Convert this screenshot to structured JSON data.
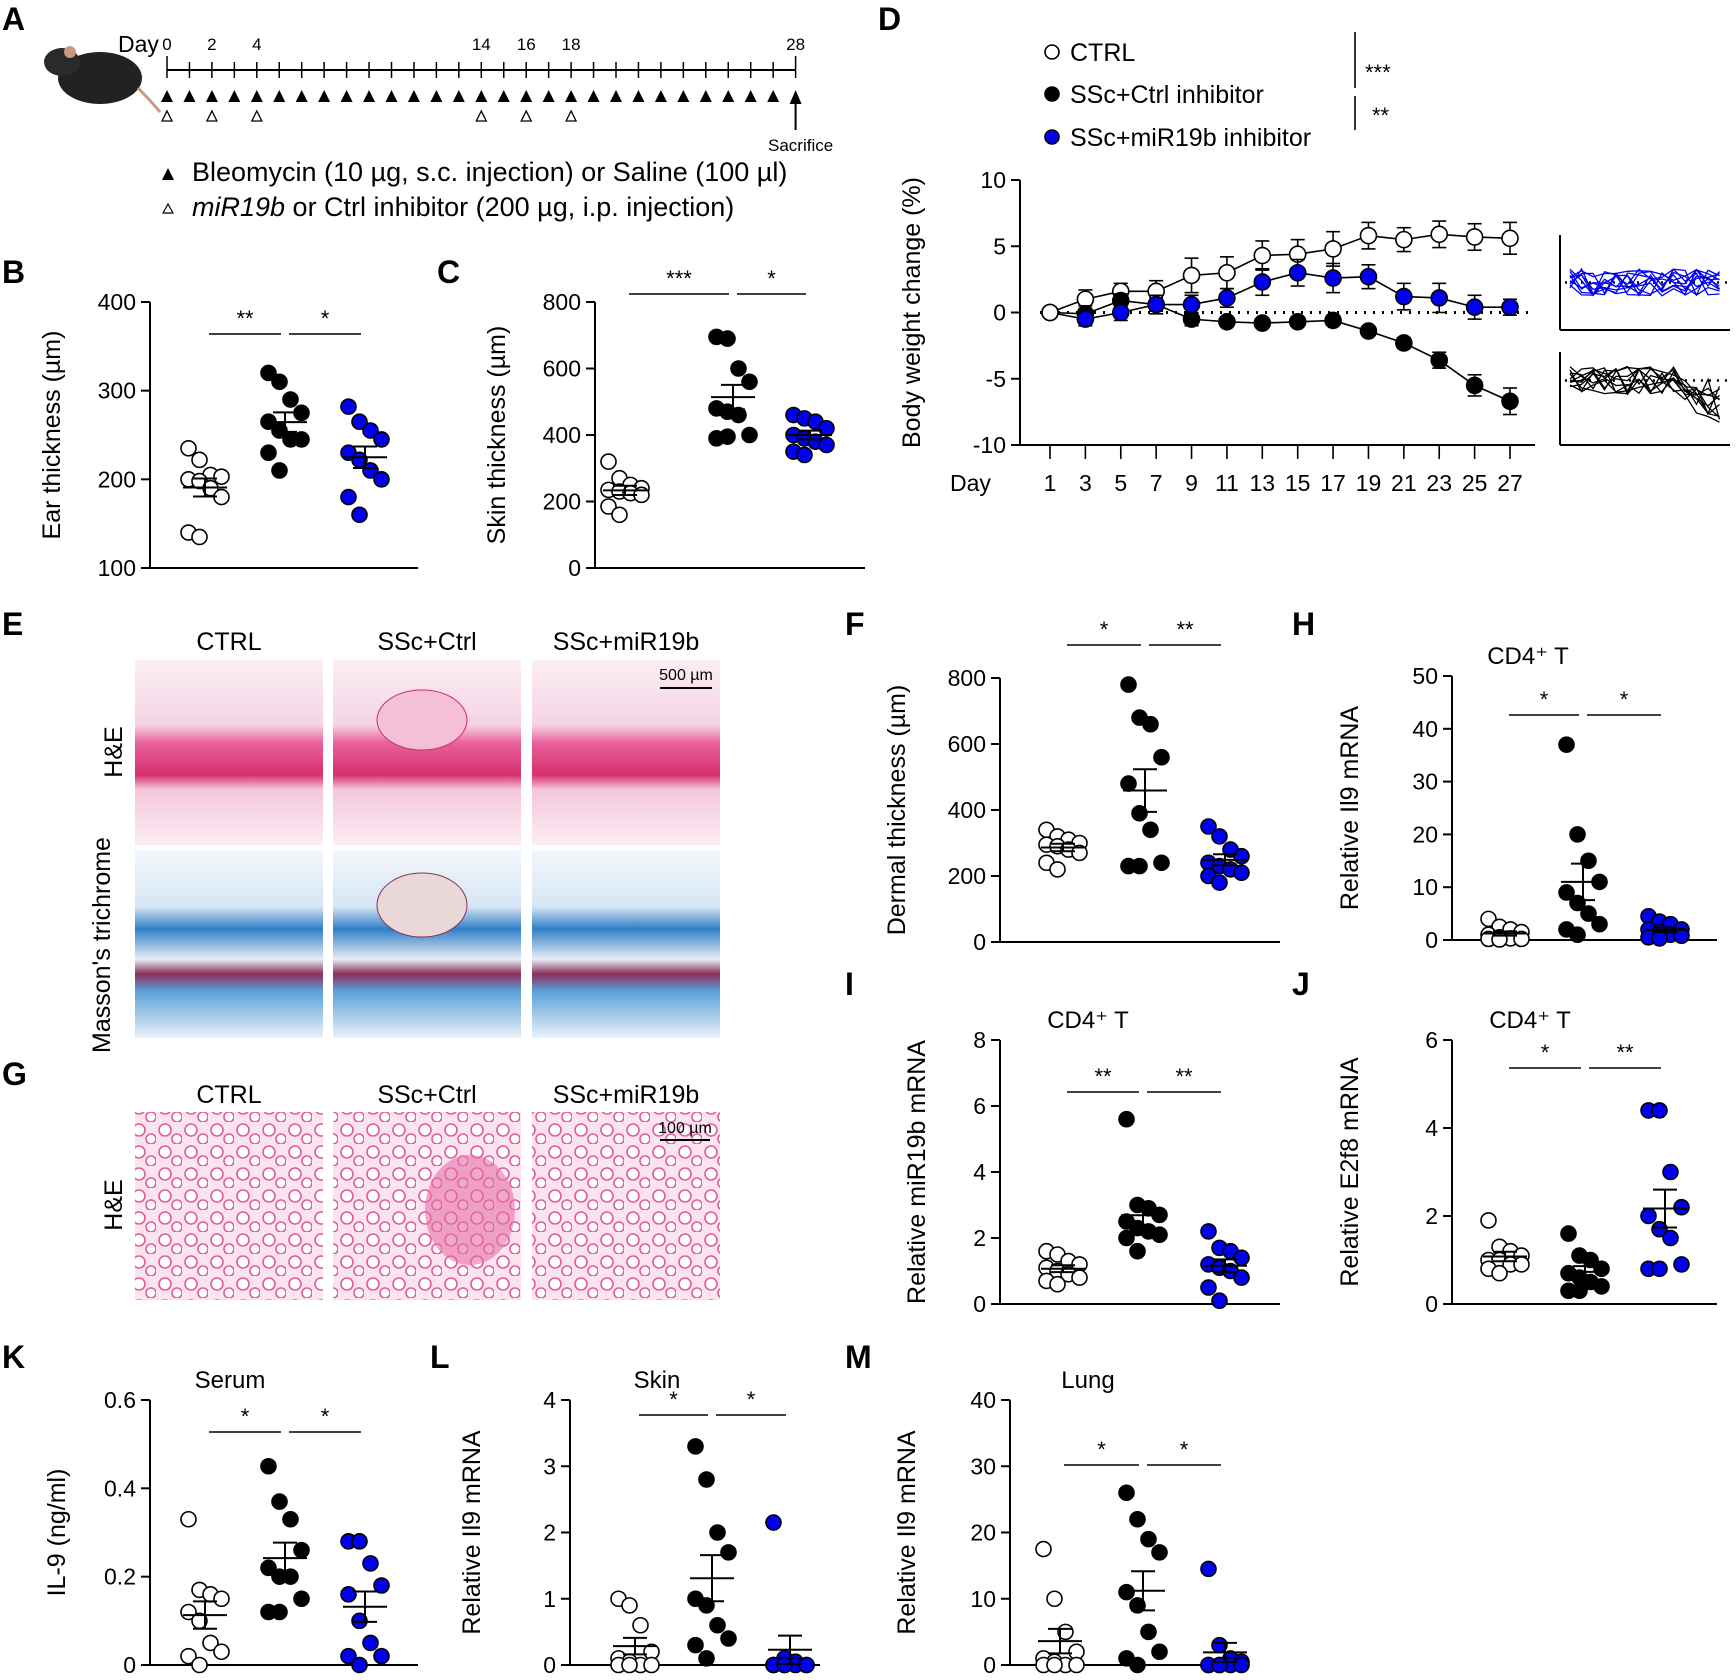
{
  "colors": {
    "ctrl_fill": "#ffffff",
    "ssc_fill": "#000000",
    "mir_fill": "#0000ee",
    "he_pink": "#e8609a",
    "trichrome_blue": "#2f7fc8"
  },
  "panel_a": {
    "letter": "A",
    "day_label": "Day",
    "day_ticks": [
      "0",
      "2",
      "4",
      "14",
      "16",
      "18",
      "28"
    ],
    "sacrifice": "Sacrifice",
    "legend_bleo": "Bleomycin (10 µg, s.c. injection) or Saline (100 µl)",
    "legend_inh_italic": "miR19b",
    "legend_inh_rest": " or Ctrl inhibitor (200 µg, i.p. injection)",
    "bleomycin_days": [
      0,
      1,
      2,
      3,
      4,
      5,
      6,
      7,
      8,
      9,
      10,
      11,
      12,
      13,
      14,
      15,
      16,
      17,
      18,
      19,
      20,
      21,
      22,
      23,
      24,
      25,
      26,
      27
    ],
    "inhibitor_days": [
      0,
      2,
      4,
      14,
      16,
      18
    ]
  },
  "panel_e": {
    "letter": "E",
    "cols": [
      "CTRL",
      "SSc+Ctrl",
      "SSc+miR19b"
    ],
    "rows": [
      "H&E",
      "Masson's trichrome"
    ],
    "scale": "500 µm"
  },
  "panel_g": {
    "letter": "G",
    "cols": [
      "CTRL",
      "SSc+Ctrl",
      "SSc+miR19b"
    ],
    "row": "H&E",
    "scale": "100 µm"
  },
  "chart_data": [
    {
      "id": "B",
      "type": "scatter",
      "ylabel": "Ear thickness (µm)",
      "title": "",
      "ylim": [
        100,
        400
      ],
      "yticks": [
        100,
        200,
        300,
        400
      ],
      "groups": [
        {
          "name": "CTRL",
          "values": [
            235,
            222,
            205,
            203,
            200,
            198,
            190,
            180,
            140,
            135
          ]
        },
        {
          "name": "SSc+Ctrl inhibitor",
          "values": [
            320,
            310,
            290,
            275,
            265,
            255,
            245,
            245,
            230,
            210
          ]
        },
        {
          "name": "SSc+miR19b inhibitor",
          "values": [
            282,
            265,
            255,
            245,
            230,
            222,
            210,
            200,
            180,
            160
          ]
        }
      ],
      "sig": [
        {
          "from": 0,
          "to": 1,
          "label": "**"
        },
        {
          "from": 1,
          "to": 2,
          "label": "*"
        }
      ]
    },
    {
      "id": "C",
      "type": "scatter",
      "ylabel": "Skin thickness (µm)",
      "title": "",
      "ylim": [
        0,
        800
      ],
      "yticks": [
        0,
        200,
        400,
        600,
        800
      ],
      "groups": [
        {
          "name": "CTRL",
          "values": [
            320,
            270,
            250,
            240,
            235,
            230,
            225,
            220,
            185,
            160
          ]
        },
        {
          "name": "SSc+Ctrl inhibitor",
          "values": [
            695,
            690,
            600,
            560,
            480,
            470,
            460,
            400,
            390,
            395
          ]
        },
        {
          "name": "SSc+miR19b inhibitor",
          "values": [
            460,
            450,
            440,
            420,
            400,
            390,
            380,
            370,
            350,
            340
          ]
        }
      ],
      "sig": [
        {
          "from": 0,
          "to": 1,
          "label": "***"
        },
        {
          "from": 1,
          "to": 2,
          "label": "*"
        }
      ]
    },
    {
      "id": "D",
      "type": "line",
      "ylabel": "Body weight change (%)",
      "xlabel": "Day",
      "ylim": [
        -10,
        10
      ],
      "yticks": [
        -10,
        -5,
        0,
        5,
        10
      ],
      "x": [
        1,
        3,
        5,
        7,
        9,
        11,
        13,
        15,
        17,
        19,
        21,
        23,
        25,
        27
      ],
      "legend": [
        "CTRL",
        "SSc+Ctrl inhibitor",
        "SSc+miR19b inhibitor"
      ],
      "legend_sig": [
        "***",
        "**"
      ],
      "series": [
        {
          "name": "CTRL",
          "values": [
            0,
            1,
            1.6,
            1.6,
            2.8,
            3,
            4.3,
            4.4,
            4.8,
            5.8,
            5.5,
            5.9,
            5.7,
            5.6
          ],
          "err": [
            0,
            0.7,
            0.6,
            0.8,
            1.3,
            1.2,
            1.1,
            1.1,
            1.3,
            1,
            0.9,
            1,
            1,
            1.2
          ]
        },
        {
          "name": "SSc+Ctrl inhibitor",
          "values": [
            0,
            -0.1,
            0.9,
            0.6,
            -0.5,
            -0.7,
            -0.8,
            -0.7,
            -0.6,
            -1.4,
            -2.3,
            -3.6,
            -5.5,
            -6.7
          ],
          "err": [
            0,
            0.6,
            0.5,
            0.5,
            0.5,
            0.3,
            0.3,
            0.3,
            0.3,
            0.3,
            0.4,
            0.6,
            0.8,
            1
          ]
        },
        {
          "name": "SSc+miR19b inhibitor",
          "values": [
            0,
            -0.5,
            0,
            0.6,
            0.6,
            1.1,
            2.3,
            3,
            2.6,
            2.7,
            1.2,
            1.1,
            0.4,
            0.4
          ],
          "err": [
            0,
            0.5,
            0.6,
            0.7,
            0.7,
            0.7,
            1,
            1,
            1.1,
            0.9,
            1,
            1.1,
            0.9,
            0.6
          ]
        }
      ]
    },
    {
      "id": "F",
      "type": "scatter",
      "ylabel": "Dermal thickness (µm)",
      "title": "",
      "ylim": [
        0,
        800
      ],
      "yticks": [
        0,
        200,
        400,
        600,
        800
      ],
      "groups": [
        {
          "name": "CTRL",
          "values": [
            340,
            320,
            310,
            300,
            295,
            290,
            280,
            270,
            240,
            220
          ]
        },
        {
          "name": "SSc+Ctrl",
          "values": [
            780,
            680,
            660,
            560,
            480,
            390,
            340,
            240,
            230,
            230
          ]
        },
        {
          "name": "SSc+miR19b",
          "values": [
            350,
            320,
            280,
            260,
            240,
            230,
            220,
            210,
            200,
            180
          ]
        }
      ],
      "sig": [
        {
          "from": 0,
          "to": 1,
          "label": "*"
        },
        {
          "from": 1,
          "to": 2,
          "label": "**"
        }
      ]
    },
    {
      "id": "H",
      "type": "scatter",
      "ylabel": "Relative Il9 mRNA",
      "title": "CD4⁺ T",
      "ylim": [
        0,
        50
      ],
      "yticks": [
        0,
        10,
        20,
        30,
        40,
        50
      ],
      "groups": [
        {
          "name": "CTRL",
          "values": [
            4,
            2.5,
            2,
            1.5,
            1,
            0.5,
            0.3,
            0.2,
            0.2,
            0.1
          ]
        },
        {
          "name": "SSc+Ctrl",
          "values": [
            37,
            20,
            15,
            11,
            9,
            7,
            5,
            3,
            2,
            1
          ]
        },
        {
          "name": "SSc+miR19b",
          "values": [
            4.5,
            3.5,
            3,
            2,
            2,
            1.5,
            1,
            0.8,
            0.5,
            0.3
          ]
        }
      ],
      "sig": [
        {
          "from": 0,
          "to": 1,
          "label": "*"
        },
        {
          "from": 1,
          "to": 2,
          "label": "*"
        }
      ]
    },
    {
      "id": "I",
      "type": "scatter",
      "ylabel": "Relative miR19b mRNA",
      "title": "CD4⁺ T",
      "ylim": [
        0,
        8
      ],
      "yticks": [
        0,
        2,
        4,
        6,
        8
      ],
      "groups": [
        {
          "name": "CTRL",
          "values": [
            1.6,
            1.5,
            1.3,
            1.2,
            1.1,
            1,
            0.9,
            0.8,
            0.7,
            0.6
          ]
        },
        {
          "name": "SSc+Ctrl",
          "values": [
            5.6,
            3,
            2.9,
            2.7,
            2.5,
            2.3,
            2.2,
            2.1,
            2,
            1.6
          ]
        },
        {
          "name": "SSc+miR19b",
          "values": [
            2.2,
            1.7,
            1.6,
            1.4,
            1.2,
            1.1,
            1,
            0.8,
            0.5,
            0.1
          ]
        }
      ],
      "sig": [
        {
          "from": 0,
          "to": 1,
          "label": "**"
        },
        {
          "from": 1,
          "to": 2,
          "label": "**"
        }
      ]
    },
    {
      "id": "J",
      "type": "scatter",
      "ylabel": "Relative E2f8 mRNA",
      "title": "CD4⁺ T",
      "ylim": [
        0,
        6
      ],
      "yticks": [
        0,
        2,
        4,
        6
      ],
      "groups": [
        {
          "name": "CTRL",
          "values": [
            1.9,
            1.3,
            1.2,
            1.1,
            1,
            1,
            0.9,
            0.9,
            0.8,
            0.7
          ]
        },
        {
          "name": "SSc+Ctrl",
          "values": [
            1.6,
            1.1,
            1,
            0.8,
            0.7,
            0.6,
            0.5,
            0.4,
            0.3,
            0.3
          ]
        },
        {
          "name": "SSc+miR19b",
          "values": [
            4.4,
            4.4,
            3,
            2.2,
            2,
            1.7,
            1.5,
            0.9,
            0.8,
            0.8
          ]
        }
      ],
      "sig": [
        {
          "from": 0,
          "to": 1,
          "label": "*"
        },
        {
          "from": 1,
          "to": 2,
          "label": "**"
        }
      ]
    },
    {
      "id": "K",
      "type": "scatter",
      "ylabel": "IL-9 (ng/ml)",
      "title": "Serum",
      "ylim": [
        0,
        0.6
      ],
      "yticks": [
        0,
        0.2,
        0.4,
        0.6
      ],
      "groups": [
        {
          "name": "CTRL",
          "values": [
            0.33,
            0.17,
            0.16,
            0.15,
            0.12,
            0.1,
            0.05,
            0.03,
            0.02,
            0
          ]
        },
        {
          "name": "SSc+Ctrl",
          "values": [
            0.45,
            0.37,
            0.33,
            0.26,
            0.22,
            0.2,
            0.2,
            0.15,
            0.12,
            0.12
          ]
        },
        {
          "name": "SSc+miR19b",
          "values": [
            0.28,
            0.28,
            0.23,
            0.18,
            0.16,
            0.1,
            0.05,
            0.02,
            0.02,
            0
          ]
        }
      ],
      "sig": [
        {
          "from": 0,
          "to": 1,
          "label": "*"
        },
        {
          "from": 1,
          "to": 2,
          "label": "*"
        }
      ]
    },
    {
      "id": "L",
      "type": "scatter",
      "ylabel": "Relative Il9 mRNA",
      "title": "Skin",
      "ylim": [
        0,
        4
      ],
      "yticks": [
        0,
        1,
        2,
        3,
        4
      ],
      "groups": [
        {
          "name": "CTRL",
          "values": [
            1,
            0.9,
            0.6,
            0.2,
            0.1,
            0.05,
            0,
            0,
            0,
            0
          ]
        },
        {
          "name": "SSc+Ctrl",
          "values": [
            3.3,
            2.8,
            2,
            1.7,
            1,
            0.9,
            0.6,
            0.4,
            0.3,
            0.1
          ]
        },
        {
          "name": "SSc+miR19b",
          "values": [
            2.15,
            0.1,
            0.05,
            0,
            0,
            0,
            0,
            0,
            0,
            0
          ]
        }
      ],
      "sig": [
        {
          "from": 0,
          "to": 1,
          "label": "*"
        },
        {
          "from": 1,
          "to": 2,
          "label": "*"
        }
      ]
    },
    {
      "id": "M",
      "type": "scatter",
      "ylabel": "Relative Il9 mRNA",
      "title": "Lung",
      "ylim": [
        0,
        40
      ],
      "yticks": [
        0,
        10,
        20,
        30,
        40
      ],
      "groups": [
        {
          "name": "CTRL",
          "values": [
            17.5,
            10,
            5,
            2,
            1,
            0.5,
            0,
            0,
            0,
            0
          ]
        },
        {
          "name": "SSc+Ctrl",
          "values": [
            26,
            22,
            19,
            17,
            11,
            9,
            5,
            2,
            1,
            0
          ]
        },
        {
          "name": "SSc+miR19b",
          "values": [
            14.5,
            3,
            1,
            0.5,
            0,
            0,
            0,
            0,
            0,
            0
          ]
        }
      ],
      "sig": [
        {
          "from": 0,
          "to": 1,
          "label": "*"
        },
        {
          "from": 1,
          "to": 2,
          "label": "*"
        }
      ]
    }
  ]
}
